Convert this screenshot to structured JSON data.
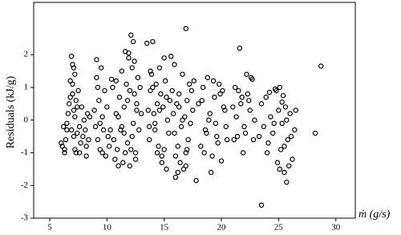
{
  "chart_data": {
    "type": "scatter",
    "y_label": "Residuals (kJ/g)",
    "x_label": "ṁ (g/s)",
    "xlim": [
      3.6,
      31.7
    ],
    "ylim": [
      -3,
      3.6
    ],
    "xticks": [
      5,
      10,
      15,
      20,
      25,
      30
    ],
    "yticks": [
      -3,
      -2,
      -1,
      0,
      1,
      2
    ],
    "color": "#000000",
    "x": [
      6.0,
      6.1,
      6.2,
      6.3,
      6.4,
      6.5,
      6.6,
      6.7,
      6.8,
      6.9,
      7.0,
      7.0,
      7.1,
      7.1,
      7.2,
      7.2,
      7.3,
      7.3,
      7.4,
      7.5,
      7.6,
      7.7,
      7.8,
      7.9,
      8.0,
      8.1,
      8.2,
      8.3,
      8.4,
      8.5,
      6.3,
      6.5,
      6.8,
      7.0,
      7.2,
      7.4,
      6.9,
      7.1,
      7.6,
      8.2,
      8.9,
      9.0,
      9.1,
      9.2,
      9.2,
      9.3,
      9.4,
      9.5,
      9.6,
      9.7,
      9.8,
      9.9,
      10.0,
      10.1,
      10.2,
      9.4,
      9.1,
      9.6,
      10.3,
      10.4,
      10.5,
      10.6,
      10.7,
      10.8,
      10.9,
      11.0,
      11.1,
      11.2,
      11.3,
      11.4,
      11.5,
      11.6,
      11.7,
      11.8,
      11.9,
      12.0,
      12.1,
      12.2,
      12.3,
      12.4,
      12.5,
      12.6,
      12.7,
      12.0,
      12.2,
      12.3,
      11.5,
      11.8,
      11.0,
      10.8,
      12.4,
      12.1,
      11.9,
      11.3,
      11.6,
      12.5,
      12.6,
      12.8,
      12.9,
      13.0,
      13.5,
      13.6,
      13.7,
      13.8,
      13.9,
      14.0,
      14.1,
      14.2,
      14.3,
      14.4,
      14.5,
      14.6,
      14.7,
      14.8,
      14.9,
      15.0,
      15.1,
      15.2,
      15.3,
      15.4,
      15.5,
      13.8,
      14.2,
      14.6,
      15.0,
      14.0,
      14.4,
      15.2,
      13.7,
      14.8,
      15.6,
      15.7,
      15.8,
      15.9,
      16.0,
      16.1,
      16.2,
      16.3,
      16.4,
      16.5,
      16.6,
      16.7,
      16.8,
      16.9,
      17.0,
      17.1,
      17.2,
      17.3,
      17.4,
      17.6,
      16.0,
      16.3,
      16.6,
      16.9,
      15.9,
      16.2,
      17.0,
      17.8,
      16.9,
      17.5,
      18.0,
      18.2,
      18.4,
      18.6,
      18.8,
      19.0,
      19.2,
      19.4,
      19.6,
      19.8,
      20.0,
      20.2,
      20.4,
      18.5,
      18.9,
      19.3,
      19.7,
      20.1,
      18.3,
      19.1,
      19.5,
      20.3,
      18.7,
      19.9,
      20.5,
      21.0,
      21.2,
      21.4,
      21.6,
      21.8,
      22.0,
      22.2,
      22.4,
      22.6,
      22.8,
      21.3,
      21.9,
      22.5,
      21.5,
      22.1,
      22.7,
      21.1,
      22.3,
      21.7,
      22.9,
      23.3,
      23.5,
      23.7,
      23.9,
      24.1,
      24.3,
      24.5,
      24.7,
      24.9,
      25.0,
      25.1,
      25.2,
      25.3,
      25.4,
      25.5,
      25.6,
      25.7,
      25.8,
      26.0,
      26.2,
      26.4,
      24.6,
      24.8,
      25.1,
      25.3,
      25.5,
      25.7,
      24.2,
      26.1,
      24.0,
      25.9,
      26.5,
      23.5,
      28.2,
      28.7
    ],
    "values": [
      -0.7,
      -0.8,
      -0.2,
      -0.9,
      -0.6,
      -0.3,
      0.2,
      0.5,
      1.2,
      1.95,
      1.7,
      0.8,
      0.3,
      -0.5,
      1.4,
      0.1,
      -1.0,
      0.6,
      -0.4,
      0.9,
      -0.2,
      -0.7,
      0.4,
      -0.5,
      0.0,
      -0.3,
      -0.8,
      0.2,
      -0.6,
      0.1,
      -1.0,
      -0.1,
      0.7,
      1.1,
      -0.9,
      0.4,
      -0.3,
      1.6,
      -1.0,
      -1.1,
      0.3,
      -0.2,
      1.85,
      1.0,
      -0.6,
      0.6,
      -0.9,
      1.6,
      0.1,
      -0.3,
      0.9,
      -1.1,
      0.4,
      -0.5,
      -0.8,
      -0.1,
      1.3,
      -1.0,
      -0.3,
      1.25,
      1.0,
      -0.6,
      -1.2,
      0.2,
      -0.9,
      -1.4,
      0.7,
      -0.3,
      1.5,
      -1.3,
      0.4,
      -1.0,
      1.1,
      -0.7,
      2.05,
      0.9,
      2.6,
      -0.5,
      2.4,
      1.8,
      -1.2,
      0.3,
      1.3,
      -1.4,
      1.6,
      -0.1,
      -0.4,
      0.6,
      0.1,
      1.2,
      0.8,
      -0.9,
      1.9,
      -0.2,
      2.1,
      -1.0,
      0.5,
      -0.3,
      1.0,
      0.2,
      2.35,
      0.3,
      -0.6,
      0.9,
      1.4,
      2.4,
      0.2,
      -0.3,
      1.1,
      0.5,
      -0.8,
      1.6,
      0.8,
      -1.3,
      0.4,
      -0.9,
      1.2,
      -1.5,
      0.0,
      -0.4,
      0.6,
      1.5,
      -0.1,
      0.3,
      1.9,
      1.0,
      -1.0,
      0.7,
      -0.2,
      -1.1,
      1.95,
      0.9,
      0.2,
      -0.4,
      -1.1,
      0.5,
      -1.6,
      0.8,
      -1.3,
      -0.2,
      1.4,
      -1.5,
      0.1,
      -1.0,
      0.6,
      -0.6,
      1.1,
      -0.1,
      0.9,
      1.2,
      -1.75,
      0.4,
      0.0,
      -1.4,
      1.7,
      -0.8,
      -0.9,
      -1.85,
      2.8,
      0.3,
      0.5,
      -0.8,
      1.0,
      -0.3,
      1.3,
      0.2,
      -1.1,
      0.7,
      -0.5,
      1.1,
      -1.25,
      0.4,
      -0.2,
      -1.0,
      0.0,
      1.2,
      -0.7,
      0.9,
      0.6,
      -1.6,
      -0.1,
      0.3,
      -0.4,
      0.8,
      -0.6,
      0.4,
      1.0,
      -0.5,
      2.2,
      0.7,
      -0.2,
      1.4,
      0.6,
      1.3,
      -0.6,
      0.1,
      -1.0,
      0.3,
      0.9,
      -0.4,
      1.25,
      -0.6,
      0.8,
      0.5,
      0.0,
      -0.5,
      0.5,
      -0.2,
      0.7,
      -0.7,
      0.1,
      -0.4,
      0.95,
      -1.3,
      0.3,
      1.0,
      -0.9,
      -0.1,
      0.75,
      -1.6,
      0.4,
      -1.9,
      -0.6,
      0.2,
      -1.2,
      -0.3,
      -0.1,
      0.9,
      -1.5,
      0.55,
      -0.8,
      0.0,
      0.85,
      -0.5,
      -1.0,
      -1.4,
      0.3,
      -2.6,
      -0.4,
      1.65
    ]
  }
}
